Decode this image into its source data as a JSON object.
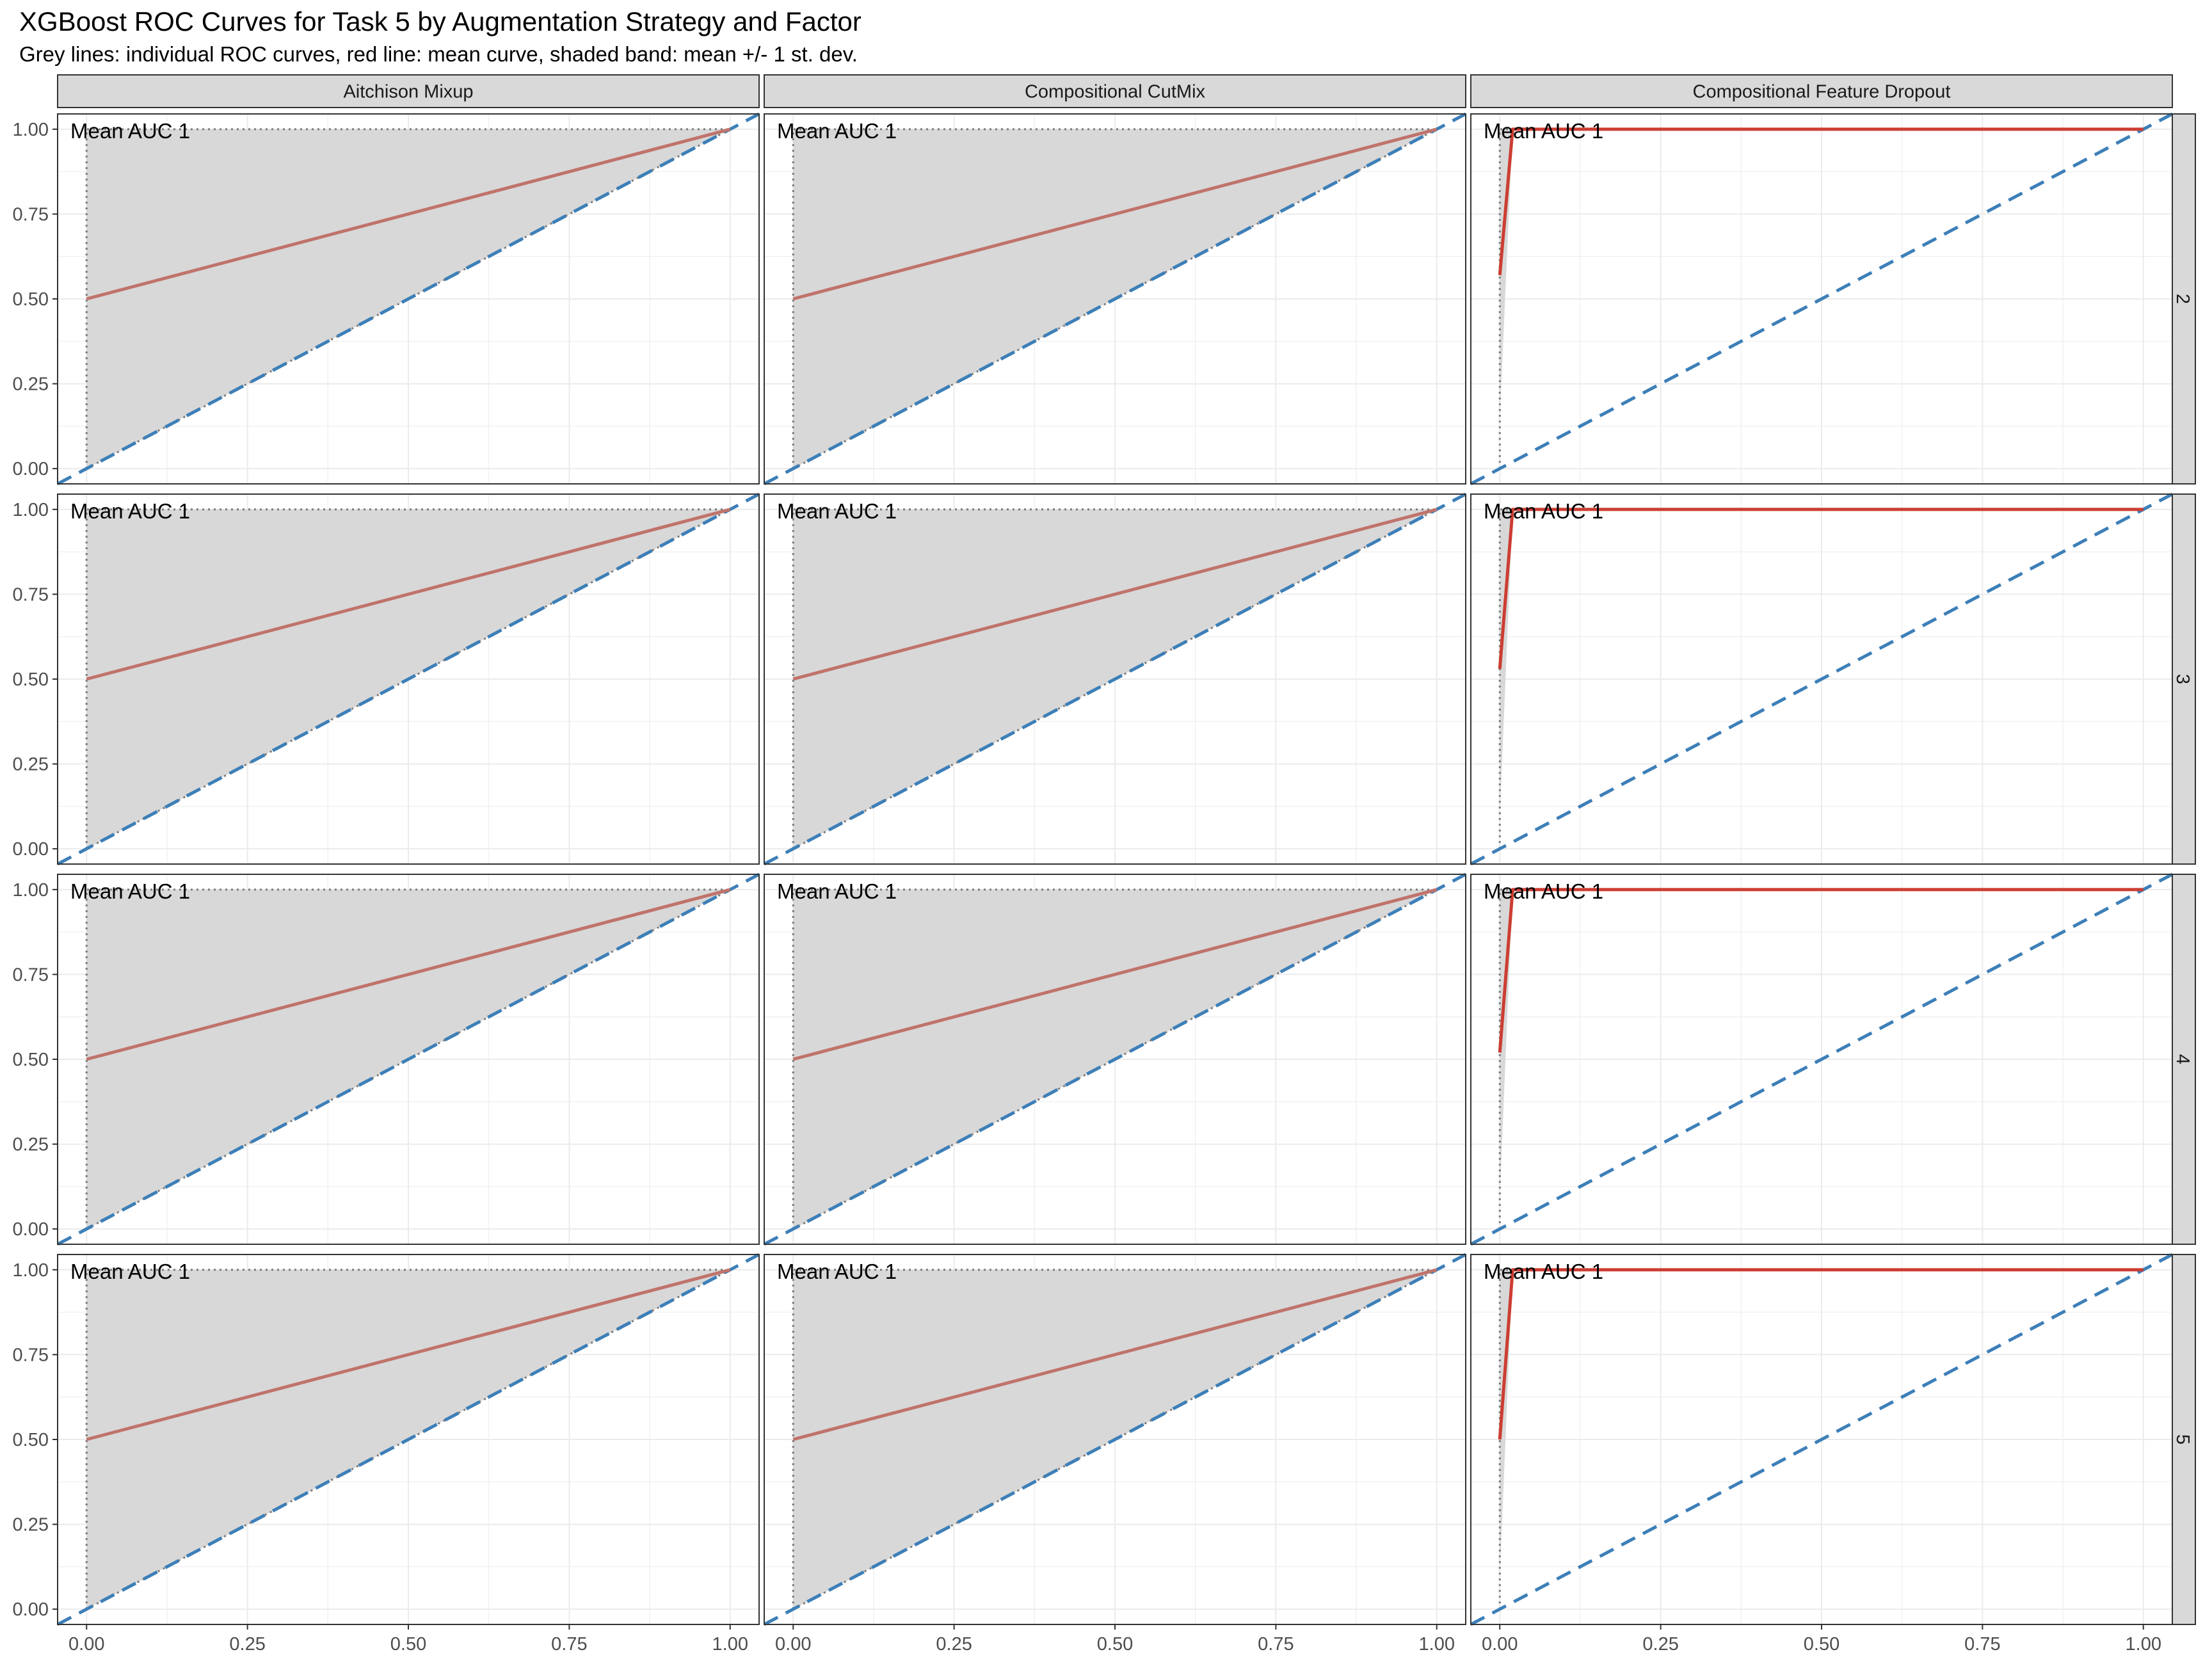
{
  "title": "XGBoost ROC Curves for Task 5 by Augmentation Strategy and Factor",
  "subtitle": "Grey lines: individual ROC curves, red line: mean curve, shaded band: mean +/- 1 st. dev.",
  "columns": [
    "Aitchison Mixup",
    "Compositional CutMix",
    "Compositional Feature Dropout"
  ],
  "rows": [
    "2",
    "3",
    "4",
    "5"
  ],
  "colors": {
    "mean_curve": "#c0736b",
    "mean_curve_dropout": "#cc3d32",
    "band": "#d8d8d8",
    "reference_line": "#3d7fb8",
    "individual_curves": "#6e6e6e",
    "strip_fill": "#d9d9d9",
    "grid": "#ebebeb"
  },
  "chart_data": {
    "type": "line",
    "xlim": [
      0,
      1
    ],
    "ylim": [
      0,
      1
    ],
    "x_ticks": [
      "0.00",
      "0.25",
      "0.50",
      "0.75",
      "1.00"
    ],
    "y_ticks": [
      "0.00",
      "0.25",
      "0.50",
      "0.75",
      "1.00"
    ],
    "grid": true,
    "legend": "none",
    "reference_line": {
      "x": [
        0,
        1
      ],
      "y": [
        0,
        1
      ],
      "style": "dashed"
    },
    "panels": [
      {
        "column": "Aitchison Mixup",
        "row": "2",
        "annotation": "Mean AUC 1",
        "mean_curve": {
          "x": [
            0,
            1
          ],
          "y": [
            0.5,
            1
          ]
        },
        "band": {
          "x": [
            0,
            1
          ],
          "lower": [
            0,
            1
          ],
          "upper": [
            1,
            1
          ]
        },
        "individual": [
          {
            "x": [
              0,
              0,
              1
            ],
            "y": [
              0,
              1,
              1
            ]
          },
          {
            "x": [
              0,
              1
            ],
            "y": [
              0,
              1
            ]
          }
        ]
      },
      {
        "column": "Compositional CutMix",
        "row": "2",
        "annotation": "Mean AUC 1",
        "mean_curve": {
          "x": [
            0,
            1
          ],
          "y": [
            0.5,
            1
          ]
        },
        "band": {
          "x": [
            0,
            1
          ],
          "lower": [
            0,
            1
          ],
          "upper": [
            1,
            1
          ]
        },
        "individual": [
          {
            "x": [
              0,
              0,
              1
            ],
            "y": [
              0,
              1,
              1
            ]
          },
          {
            "x": [
              0,
              1
            ],
            "y": [
              0,
              1
            ]
          }
        ]
      },
      {
        "column": "Compositional Feature Dropout",
        "row": "2",
        "annotation": "Mean AUC 1",
        "mean_curve": {
          "x": [
            0,
            0.02,
            1
          ],
          "y": [
            0.57,
            1,
            1
          ]
        },
        "band": {
          "x": [
            0,
            0.02
          ],
          "lower": [
            0.15,
            1
          ],
          "upper": [
            1,
            1
          ]
        },
        "individual": [
          {
            "x": [
              0,
              0,
              1
            ],
            "y": [
              0,
              1,
              1
            ]
          }
        ]
      },
      {
        "column": "Aitchison Mixup",
        "row": "3",
        "annotation": "Mean AUC 1",
        "mean_curve": {
          "x": [
            0,
            1
          ],
          "y": [
            0.5,
            1
          ]
        },
        "band": {
          "x": [
            0,
            1
          ],
          "lower": [
            0,
            1
          ],
          "upper": [
            1,
            1
          ]
        },
        "individual": [
          {
            "x": [
              0,
              0,
              1
            ],
            "y": [
              0,
              1,
              1
            ]
          },
          {
            "x": [
              0,
              1
            ],
            "y": [
              0,
              1
            ]
          }
        ]
      },
      {
        "column": "Compositional CutMix",
        "row": "3",
        "annotation": "Mean AUC 1",
        "mean_curve": {
          "x": [
            0,
            1
          ],
          "y": [
            0.5,
            1
          ]
        },
        "band": {
          "x": [
            0,
            1
          ],
          "lower": [
            0,
            1
          ],
          "upper": [
            1,
            1
          ]
        },
        "individual": [
          {
            "x": [
              0,
              0,
              1
            ],
            "y": [
              0,
              1,
              1
            ]
          },
          {
            "x": [
              0,
              1
            ],
            "y": [
              0,
              1
            ]
          }
        ]
      },
      {
        "column": "Compositional Feature Dropout",
        "row": "3",
        "annotation": "Mean AUC 1",
        "mean_curve": {
          "x": [
            0,
            0.02,
            1
          ],
          "y": [
            0.53,
            1,
            1
          ]
        },
        "band": {
          "x": [
            0,
            0.02
          ],
          "lower": [
            0.1,
            1
          ],
          "upper": [
            1,
            1
          ]
        },
        "individual": [
          {
            "x": [
              0,
              0,
              1
            ],
            "y": [
              0,
              1,
              1
            ]
          }
        ]
      },
      {
        "column": "Aitchison Mixup",
        "row": "4",
        "annotation": "Mean AUC 1",
        "mean_curve": {
          "x": [
            0,
            1
          ],
          "y": [
            0.5,
            1
          ]
        },
        "band": {
          "x": [
            0,
            1
          ],
          "lower": [
            0,
            1
          ],
          "upper": [
            1,
            1
          ]
        },
        "individual": [
          {
            "x": [
              0,
              0,
              1
            ],
            "y": [
              0,
              1,
              1
            ]
          },
          {
            "x": [
              0,
              1
            ],
            "y": [
              0,
              1
            ]
          }
        ]
      },
      {
        "column": "Compositional CutMix",
        "row": "4",
        "annotation": "Mean AUC 1",
        "mean_curve": {
          "x": [
            0,
            1
          ],
          "y": [
            0.5,
            1
          ]
        },
        "band": {
          "x": [
            0,
            1
          ],
          "lower": [
            0,
            1
          ],
          "upper": [
            1,
            1
          ]
        },
        "individual": [
          {
            "x": [
              0,
              0,
              1
            ],
            "y": [
              0,
              1,
              1
            ]
          },
          {
            "x": [
              0,
              1
            ],
            "y": [
              0,
              1
            ]
          }
        ]
      },
      {
        "column": "Compositional Feature Dropout",
        "row": "4",
        "annotation": "Mean AUC 1",
        "mean_curve": {
          "x": [
            0,
            0.02,
            1
          ],
          "y": [
            0.52,
            1,
            1
          ]
        },
        "band": {
          "x": [
            0,
            0.02
          ],
          "lower": [
            0.1,
            1
          ],
          "upper": [
            1,
            1
          ]
        },
        "individual": [
          {
            "x": [
              0,
              0,
              1
            ],
            "y": [
              0,
              1,
              1
            ]
          }
        ]
      },
      {
        "column": "Aitchison Mixup",
        "row": "5",
        "annotation": "Mean AUC 1",
        "mean_curve": {
          "x": [
            0,
            1
          ],
          "y": [
            0.5,
            1
          ]
        },
        "band": {
          "x": [
            0,
            1
          ],
          "lower": [
            0,
            1
          ],
          "upper": [
            1,
            1
          ]
        },
        "individual": [
          {
            "x": [
              0,
              0,
              1
            ],
            "y": [
              0,
              1,
              1
            ]
          },
          {
            "x": [
              0,
              1
            ],
            "y": [
              0,
              1
            ]
          }
        ]
      },
      {
        "column": "Compositional CutMix",
        "row": "5",
        "annotation": "Mean AUC 1",
        "mean_curve": {
          "x": [
            0,
            1
          ],
          "y": [
            0.5,
            1
          ]
        },
        "band": {
          "x": [
            0,
            1
          ],
          "lower": [
            0,
            1
          ],
          "upper": [
            1,
            1
          ]
        },
        "individual": [
          {
            "x": [
              0,
              0,
              1
            ],
            "y": [
              0,
              1,
              1
            ]
          },
          {
            "x": [
              0,
              1
            ],
            "y": [
              0,
              1
            ]
          }
        ]
      },
      {
        "column": "Compositional Feature Dropout",
        "row": "5",
        "annotation": "Mean AUC 1",
        "mean_curve": {
          "x": [
            0,
            0.02,
            1
          ],
          "y": [
            0.5,
            1,
            1
          ]
        },
        "band": {
          "x": [
            0,
            0.02
          ],
          "lower": [
            0.1,
            1
          ],
          "upper": [
            1,
            1
          ]
        },
        "individual": [
          {
            "x": [
              0,
              0,
              1
            ],
            "y": [
              0,
              1,
              1
            ]
          }
        ]
      }
    ]
  }
}
